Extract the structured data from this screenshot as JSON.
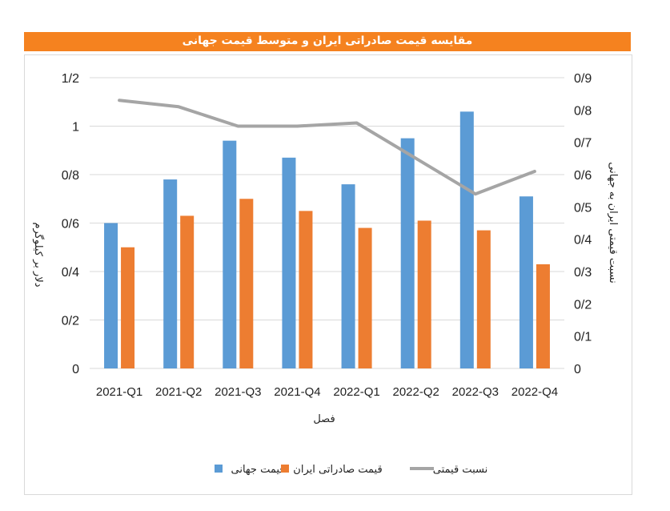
{
  "chart_data": {
    "type": "bar",
    "title": "مقایسه قیمت صادراتی ایران و متوسط قیمت جهانی",
    "categories": [
      "2021-Q1",
      "2021-Q2",
      "2021-Q3",
      "2021-Q4",
      "2022-Q1",
      "2022-Q2",
      "2022-Q3",
      "2022-Q4"
    ],
    "series": [
      {
        "name": "قیمت جهانی",
        "type": "bar",
        "axis": "left",
        "color": "#5b9bd5",
        "values": [
          0.6,
          0.78,
          0.94,
          0.87,
          0.76,
          0.95,
          1.06,
          0.71
        ]
      },
      {
        "name": "قیمت صادراتی ایران",
        "type": "bar",
        "axis": "left",
        "color": "#ed7d31",
        "values": [
          0.5,
          0.63,
          0.7,
          0.65,
          0.58,
          0.61,
          0.57,
          0.43
        ]
      },
      {
        "name": "نسبت قیمتی",
        "type": "line",
        "axis": "right",
        "color": "#a5a5a5",
        "values": [
          0.83,
          0.81,
          0.75,
          0.75,
          0.76,
          0.65,
          0.54,
          0.61
        ]
      }
    ],
    "xlabel": "فصل",
    "ylabel": "دلار بر کیلوگرم",
    "y2label": "نسبت قیمتی ایران به جهانی",
    "ylim": [
      0,
      1.2
    ],
    "y2lim": [
      0,
      0.9
    ],
    "yticks": [
      "0",
      "0/2",
      "0/4",
      "0/6",
      "0/8",
      "1",
      "1/2"
    ],
    "y2ticks": [
      "0",
      "0/1",
      "0/2",
      "0/3",
      "0/4",
      "0/5",
      "0/6",
      "0/7",
      "0/8",
      "0/9"
    ],
    "grid": true,
    "legend_position": "bottom"
  }
}
